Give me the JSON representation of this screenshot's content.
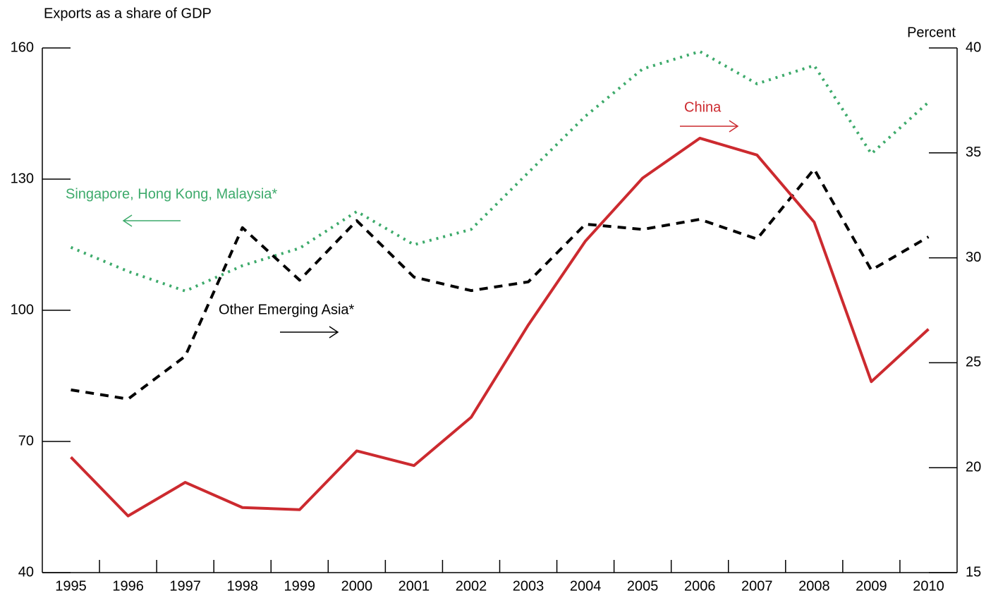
{
  "chart_data": {
    "type": "line",
    "title": "Exports as a share of GDP",
    "y2label": "Percent",
    "categories": [
      "1995",
      "1996",
      "1997",
      "1998",
      "1999",
      "2000",
      "2001",
      "2002",
      "2003",
      "2004",
      "2005",
      "2006",
      "2007",
      "2008",
      "2009",
      "2010"
    ],
    "series": [
      {
        "name": "Singapore, Hong Kong, Malaysia*",
        "color": "#3daa6b",
        "style": "dotted",
        "axis": "y",
        "values": [
          114.4,
          108.9,
          104.4,
          110.2,
          114.2,
          122.6,
          115,
          118.5,
          131.5,
          144.4,
          155.2,
          159.2,
          151.8,
          156,
          135.8,
          147.6
        ]
      },
      {
        "name": "Other Emerging Asia*",
        "color": "#000000",
        "style": "dashed",
        "axis": "y",
        "values": [
          81.8,
          79.7,
          89.5,
          118.9,
          106.9,
          120.5,
          107.6,
          104.5,
          106.5,
          119.7,
          118.5,
          120.8,
          116.3,
          132.3,
          109.2,
          116.8
        ]
      },
      {
        "name": "China",
        "color": "#cc2a2f",
        "style": "solid",
        "axis": "y2",
        "values": [
          20.5,
          17.7,
          19.3,
          18.1,
          18.0,
          20.8,
          20.1,
          22.4,
          26.8,
          30.8,
          33.8,
          35.7,
          34.9,
          31.7,
          24.1,
          26.6
        ]
      }
    ],
    "ylim": [
      40,
      160
    ],
    "yticks": [
      40,
      70,
      100,
      130,
      160
    ],
    "y2lim": [
      15,
      40
    ],
    "y2ticks": [
      15,
      20,
      25,
      30,
      35,
      40
    ]
  }
}
